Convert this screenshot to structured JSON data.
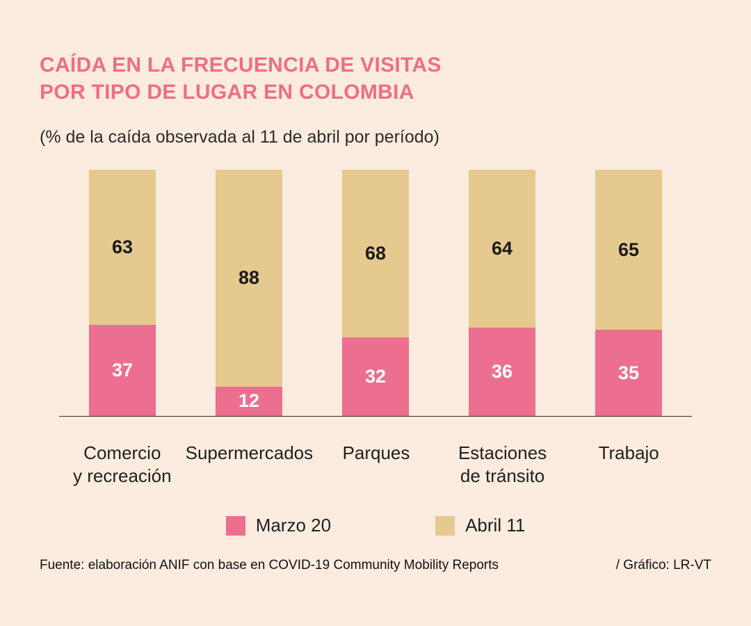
{
  "page": {
    "title_line1": "CAÍDA EN LA FRECUENCIA DE VISITAS",
    "title_line2": "POR TIPO DE LUGAR EN COLOMBIA",
    "subtitle": "(% de la caída observada al 11 de abril por período)",
    "source": "Fuente: elaboración ANIF con base en COVID-19 Community Mobility Reports",
    "credit": "/ Gráfico: LR-VT"
  },
  "colors": {
    "background": "#fbecdf",
    "title": "#ef6d85",
    "marzo": "#ec6f90",
    "abril": "#e6c98e",
    "label_dark": "#1a1a1a",
    "label_light": "#ffffff",
    "axis": "#2b2b2b"
  },
  "chart_data": {
    "type": "bar",
    "stacked": true,
    "title": "CAÍDA EN LA FRECUENCIA DE VISITAS POR TIPO DE LUGAR EN COLOMBIA",
    "subtitle": "(% de la caída observada al 11 de abril por período)",
    "categories": [
      "Comercio\ny recreación",
      "Supermercados",
      "Parques",
      "Estaciones\nde tránsito",
      "Trabajo"
    ],
    "series": [
      {
        "name": "Marzo 20",
        "color_key": "marzo",
        "label_style": "light",
        "values": [
          37,
          12,
          32,
          36,
          35
        ]
      },
      {
        "name": "Abril 11",
        "color_key": "abril",
        "label_style": "dark",
        "values": [
          63,
          88,
          68,
          64,
          65
        ]
      }
    ],
    "xlabel": "",
    "ylabel": "",
    "ylim": [
      0,
      100
    ],
    "grid": false,
    "legend_position": "bottom"
  },
  "legend": {
    "items": [
      {
        "label": "Marzo 20",
        "color": "#ec6f90"
      },
      {
        "label": "Abril 11",
        "color": "#e6c98e"
      }
    ]
  }
}
